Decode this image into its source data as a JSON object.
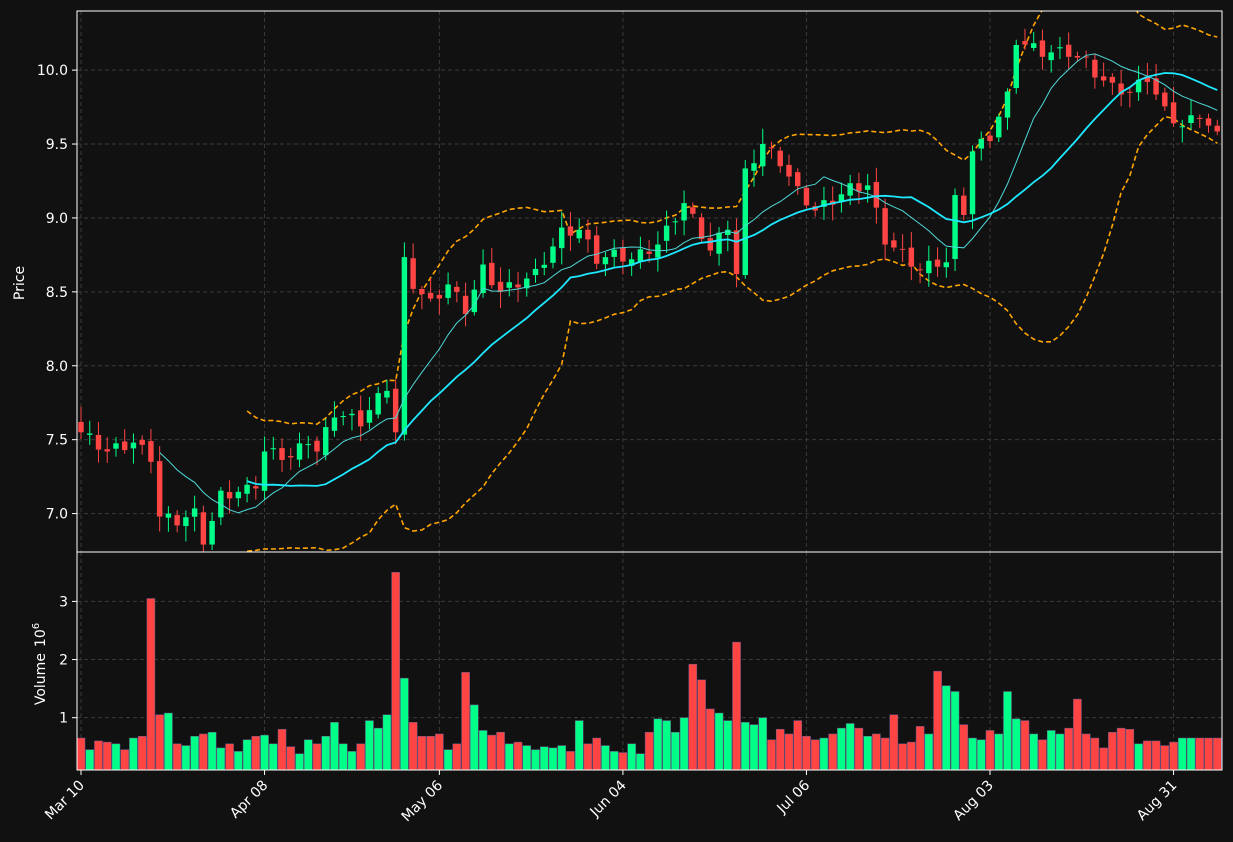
{
  "chart_data": {
    "type": "candlestick",
    "panels": [
      "price",
      "volume"
    ],
    "x_tick_labels": [
      "Mar 10",
      "Apr 08",
      "May 06",
      "Jun 04",
      "Jul 06",
      "Aug 03",
      "Aug 31"
    ],
    "x_tick_session_index": [
      0,
      21,
      41,
      62,
      83,
      104,
      125
    ],
    "price": {
      "ylabel": "Price",
      "ylim": [
        6.74,
        10.4
      ],
      "yticks": [
        7.0,
        7.5,
        8.0,
        8.5,
        9.0,
        9.5,
        10.0
      ],
      "tick_labels": [
        "7.0",
        "7.5",
        "8.0",
        "8.5",
        "9.0",
        "9.5",
        "10.0"
      ]
    },
    "volume": {
      "ylabel": "Volume",
      "scale_label": "10",
      "scale_exponent": "6",
      "ylim": [
        0.1,
        3.85
      ],
      "yticks": [
        1,
        2,
        3
      ],
      "tick_labels": [
        "1",
        "2",
        "3"
      ]
    },
    "series": [
      {
        "name": "",
        "kind": "candles"
      },
      {
        "name": "",
        "kind": "moving-average-short"
      },
      {
        "name": "",
        "kind": "moving-average-long"
      },
      {
        "name": "",
        "kind": "bollinger-upper"
      },
      {
        "name": "",
        "kind": "bollinger-lower"
      }
    ],
    "close_anchors": [
      [
        0,
        7.55
      ],
      [
        3,
        7.42
      ],
      [
        6,
        7.48
      ],
      [
        8,
        7.38
      ],
      [
        9,
        6.98
      ],
      [
        11,
        6.95
      ],
      [
        13,
        7.0
      ],
      [
        14,
        6.82
      ],
      [
        15,
        6.95
      ],
      [
        16,
        7.12
      ],
      [
        19,
        7.16
      ],
      [
        20,
        7.2
      ],
      [
        21,
        7.42
      ],
      [
        24,
        7.38
      ],
      [
        26,
        7.5
      ],
      [
        27,
        7.42
      ],
      [
        29,
        7.68
      ],
      [
        32,
        7.62
      ],
      [
        34,
        7.78
      ],
      [
        35,
        7.86
      ],
      [
        36,
        7.55
      ],
      [
        37,
        8.7
      ],
      [
        38,
        8.55
      ],
      [
        40,
        8.42
      ],
      [
        42,
        8.55
      ],
      [
        44,
        8.38
      ],
      [
        46,
        8.65
      ],
      [
        48,
        8.5
      ],
      [
        52,
        8.62
      ],
      [
        55,
        8.9
      ],
      [
        57,
        8.92
      ],
      [
        59,
        8.72
      ],
      [
        61,
        8.75
      ],
      [
        63,
        8.72
      ],
      [
        66,
        8.82
      ],
      [
        69,
        9.1
      ],
      [
        72,
        8.78
      ],
      [
        74,
        8.95
      ],
      [
        75,
        8.62
      ],
      [
        76,
        9.3
      ],
      [
        78,
        9.5
      ],
      [
        80,
        9.38
      ],
      [
        82,
        9.18
      ],
      [
        84,
        9.05
      ],
      [
        86,
        9.12
      ],
      [
        88,
        9.2
      ],
      [
        90,
        9.22
      ],
      [
        92,
        8.85
      ],
      [
        94,
        8.75
      ],
      [
        96,
        8.65
      ],
      [
        98,
        8.7
      ],
      [
        99,
        8.7
      ],
      [
        100,
        9.12
      ],
      [
        101,
        9.05
      ],
      [
        102,
        9.45
      ],
      [
        104,
        9.55
      ],
      [
        106,
        9.82
      ],
      [
        107,
        10.2
      ],
      [
        110,
        10.12
      ],
      [
        113,
        10.12
      ],
      [
        115,
        10.05
      ],
      [
        116,
        9.98
      ],
      [
        118,
        9.88
      ],
      [
        120,
        9.85
      ],
      [
        122,
        9.95
      ],
      [
        124,
        9.72
      ],
      [
        126,
        9.62
      ],
      [
        128,
        9.7
      ],
      [
        130,
        9.55
      ]
    ],
    "volume_anchors": [
      [
        0,
        0.65
      ],
      [
        1,
        0.45
      ],
      [
        2,
        0.6
      ],
      [
        3,
        0.58
      ],
      [
        4,
        0.55
      ],
      [
        5,
        0.45
      ],
      [
        6,
        0.65
      ],
      [
        7,
        0.68
      ],
      [
        8,
        3.05
      ],
      [
        9,
        1.05
      ],
      [
        10,
        1.08
      ],
      [
        11,
        0.55
      ],
      [
        12,
        0.52
      ],
      [
        13,
        0.68
      ],
      [
        14,
        0.72
      ],
      [
        15,
        0.75
      ],
      [
        16,
        0.48
      ],
      [
        17,
        0.55
      ],
      [
        18,
        0.42
      ],
      [
        19,
        0.62
      ],
      [
        20,
        0.68
      ],
      [
        21,
        0.7
      ],
      [
        22,
        0.55
      ],
      [
        23,
        0.8
      ],
      [
        24,
        0.5
      ],
      [
        25,
        0.38
      ],
      [
        26,
        0.62
      ],
      [
        27,
        0.55
      ],
      [
        28,
        0.68
      ],
      [
        29,
        0.92
      ],
      [
        30,
        0.55
      ],
      [
        31,
        0.42
      ],
      [
        32,
        0.55
      ],
      [
        33,
        0.95
      ],
      [
        34,
        0.82
      ],
      [
        35,
        1.05
      ],
      [
        36,
        3.5
      ],
      [
        37,
        1.68
      ],
      [
        38,
        0.92
      ],
      [
        39,
        0.68
      ],
      [
        40,
        0.68
      ],
      [
        41,
        0.72
      ],
      [
        42,
        0.45
      ],
      [
        43,
        0.55
      ],
      [
        44,
        1.78
      ],
      [
        45,
        1.22
      ],
      [
        46,
        0.78
      ],
      [
        47,
        0.7
      ],
      [
        48,
        0.75
      ],
      [
        49,
        0.55
      ],
      [
        50,
        0.58
      ],
      [
        51,
        0.52
      ],
      [
        52,
        0.45
      ],
      [
        53,
        0.5
      ],
      [
        54,
        0.48
      ],
      [
        55,
        0.52
      ],
      [
        56,
        0.42
      ],
      [
        57,
        0.95
      ],
      [
        58,
        0.55
      ],
      [
        59,
        0.65
      ],
      [
        60,
        0.52
      ],
      [
        61,
        0.42
      ],
      [
        62,
        0.4
      ],
      [
        63,
        0.55
      ],
      [
        64,
        0.38
      ],
      [
        65,
        0.75
      ],
      [
        66,
        0.98
      ],
      [
        67,
        0.95
      ],
      [
        68,
        0.75
      ],
      [
        69,
        1.0
      ],
      [
        70,
        1.92
      ],
      [
        71,
        1.65
      ],
      [
        72,
        1.15
      ],
      [
        73,
        1.08
      ],
      [
        74,
        0.95
      ],
      [
        75,
        2.3
      ],
      [
        76,
        0.92
      ],
      [
        77,
        0.88
      ],
      [
        78,
        1.0
      ],
      [
        79,
        0.62
      ],
      [
        80,
        0.8
      ],
      [
        81,
        0.72
      ],
      [
        82,
        0.95
      ],
      [
        83,
        0.68
      ],
      [
        84,
        0.62
      ],
      [
        85,
        0.65
      ],
      [
        86,
        0.72
      ],
      [
        87,
        0.82
      ],
      [
        88,
        0.9
      ],
      [
        89,
        0.82
      ],
      [
        90,
        0.68
      ],
      [
        91,
        0.72
      ],
      [
        92,
        0.65
      ],
      [
        93,
        1.05
      ],
      [
        94,
        0.55
      ],
      [
        95,
        0.58
      ],
      [
        96,
        0.85
      ],
      [
        97,
        0.72
      ],
      [
        98,
        1.8
      ],
      [
        99,
        1.55
      ],
      [
        100,
        1.45
      ],
      [
        101,
        0.88
      ],
      [
        102,
        0.65
      ],
      [
        103,
        0.62
      ],
      [
        104,
        0.78
      ],
      [
        105,
        0.72
      ],
      [
        106,
        1.45
      ],
      [
        107,
        0.98
      ],
      [
        108,
        0.95
      ],
      [
        109,
        0.72
      ],
      [
        110,
        0.62
      ],
      [
        111,
        0.78
      ],
      [
        112,
        0.72
      ],
      [
        113,
        0.82
      ],
      [
        114,
        1.32
      ],
      [
        115,
        0.72
      ],
      [
        116,
        0.65
      ],
      [
        117,
        0.48
      ],
      [
        118,
        0.75
      ],
      [
        119,
        0.82
      ],
      [
        120,
        0.8
      ],
      [
        121,
        0.55
      ],
      [
        122,
        0.6
      ],
      [
        123,
        0.6
      ],
      [
        124,
        0.52
      ],
      [
        125,
        0.58
      ],
      [
        126,
        0.65
      ]
    ],
    "session_count": 131,
    "grid": true,
    "grid_style": "dashed",
    "legend": "none",
    "colors": {
      "background": "#111111",
      "up": "#00ff88",
      "down": "#ff4444",
      "ma_short": "#4fd9d9",
      "ma_long": "#1ee8ff",
      "bands": "#ffa500",
      "axis": "#ffffff",
      "grid": "#3a3a3a"
    }
  }
}
